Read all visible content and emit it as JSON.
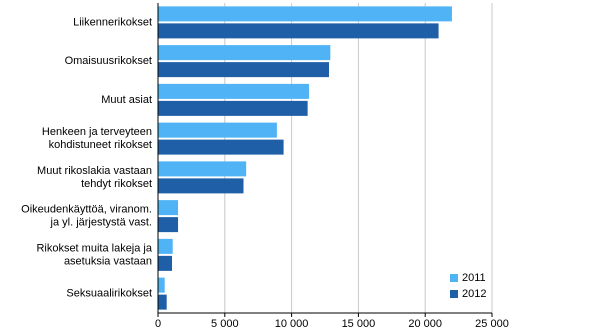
{
  "chart_data": {
    "type": "barh",
    "categories": [
      [
        "Liikennerikokset"
      ],
      [
        "Omaisuusrikokset"
      ],
      [
        "Muut asiat"
      ],
      [
        "Henkeen ja terveyteen",
        "kohdistuneet rikokset"
      ],
      [
        "Muut rikoslakia vastaan",
        "tehdyt rikokset"
      ],
      [
        "Oikeudenkäyttöä, viranom.",
        "ja yl. järjestystä vast."
      ],
      [
        "Rikokset muita lakeja ja",
        "asetuksia vastaan"
      ],
      [
        "Seksuaalirikokset"
      ]
    ],
    "series": [
      {
        "name": "2011",
        "color": "#4fb3f5",
        "values": [
          22000,
          12900,
          11300,
          8900,
          6600,
          1500,
          1100,
          500
        ]
      },
      {
        "name": "2012",
        "color": "#1f5fa8",
        "values": [
          21000,
          12800,
          11200,
          9400,
          6400,
          1500,
          1050,
          650
        ]
      }
    ],
    "xlim": [
      0,
      25000
    ],
    "xticks": [
      0,
      {
        "value": 5000,
        "label": "5 000"
      },
      {
        "value": 10000,
        "label": "10 000"
      },
      {
        "value": 15000,
        "label": "15 000"
      },
      {
        "value": 20000,
        "label": "20 000"
      },
      {
        "value": 25000,
        "label": "25 000"
      }
    ],
    "grid": true,
    "legend": "lower right"
  }
}
